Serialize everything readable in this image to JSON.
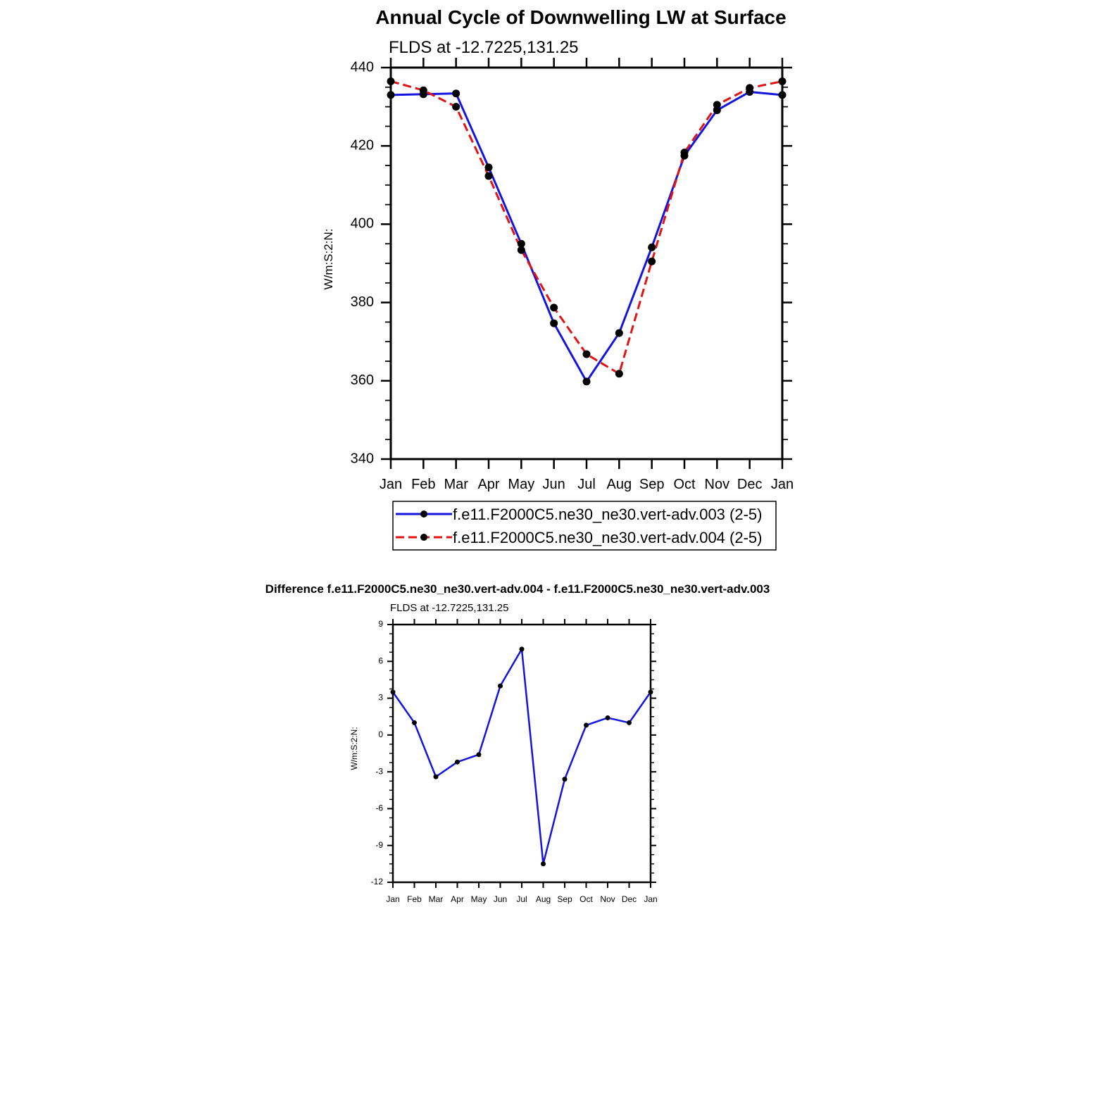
{
  "chart_data": [
    {
      "type": "line",
      "title": "Annual Cycle of Downwelling LW at Surface",
      "subtitle": "FLDS at -12.7225,131.25",
      "ylabel": "W/m:S:2:N:",
      "xlabel": "",
      "categories": [
        "Jan",
        "Feb",
        "Mar",
        "Apr",
        "May",
        "Jun",
        "Jul",
        "Aug",
        "Sep",
        "Oct",
        "Nov",
        "Dec",
        "Jan"
      ],
      "yticks": [
        340,
        360,
        380,
        400,
        420,
        440
      ],
      "ylim": [
        340,
        440
      ],
      "legend_position": "bottom",
      "grid": false,
      "series": [
        {
          "name": "f.e11.F2000C5.ne30_ne30.vert-adv.003 (2-5)",
          "color": "#1414e0",
          "dash": "solid",
          "values": [
            433.0,
            433.2,
            433.4,
            414.5,
            395.0,
            374.7,
            359.8,
            372.2,
            394.1,
            417.5,
            429.1,
            433.8,
            433.0
          ]
        },
        {
          "name": "f.e11.F2000C5.ne30_ne30.vert-adv.004 (2-5)",
          "color": "#e01414",
          "dash": "dashed",
          "values": [
            436.5,
            434.2,
            430.0,
            412.3,
            393.4,
            378.7,
            366.8,
            361.8,
            390.5,
            418.3,
            430.5,
            434.8,
            436.5
          ]
        }
      ]
    },
    {
      "type": "line",
      "title": "Difference f.e11.F2000C5.ne30_ne30.vert-adv.004 - f.e11.F2000C5.ne30_ne30.vert-adv.003",
      "subtitle": "FLDS at -12.7225,131.25",
      "ylabel": "W/m:S:2:N:",
      "xlabel": "",
      "categories": [
        "Jan",
        "Feb",
        "Mar",
        "Apr",
        "May",
        "Jun",
        "Jul",
        "Aug",
        "Sep",
        "Oct",
        "Nov",
        "Dec",
        "Jan"
      ],
      "yticks": [
        -12,
        -9,
        -6,
        -3,
        0,
        3,
        6,
        9
      ],
      "ylim": [
        -12,
        9
      ],
      "grid": false,
      "series": [
        {
          "color": "#1414e0",
          "dash": "solid",
          "values": [
            3.5,
            1.0,
            -3.4,
            -2.2,
            -1.6,
            4.0,
            7.0,
            -10.5,
            -3.6,
            0.8,
            1.4,
            1.0,
            3.5
          ]
        }
      ]
    }
  ]
}
